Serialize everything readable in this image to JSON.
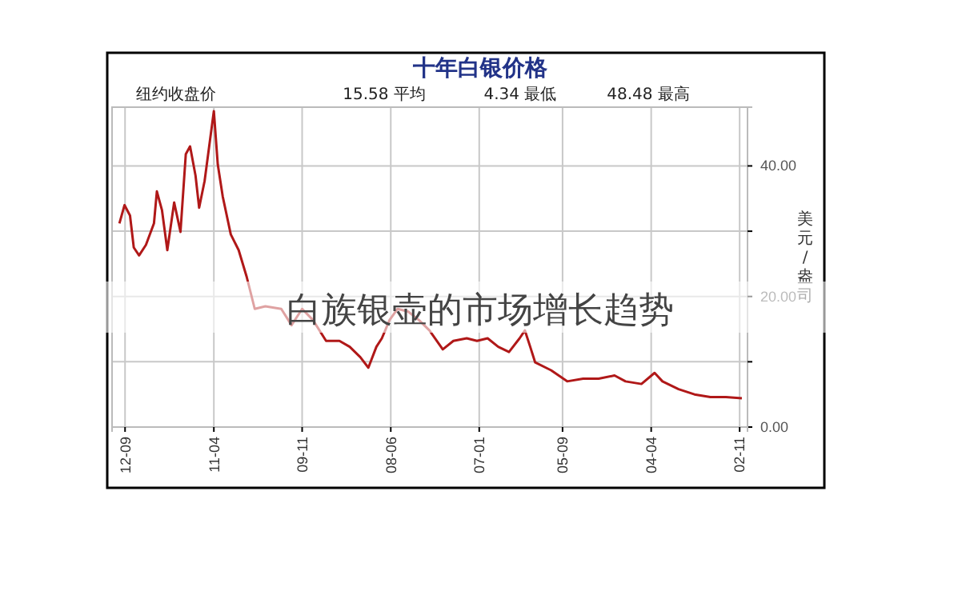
{
  "chart_data": {
    "type": "line",
    "title": "十年白银价格",
    "ylabel": "美元/盎司",
    "annotations": [
      "纽约收盘价",
      "15.58 平均",
      "4.34 最低",
      "48.48 最高",
      "白族银壶的市场增长趋势"
    ],
    "xlim": [
      "2012-11-16",
      "2002-09-16"
    ],
    "xticks": [
      {
        "value": "2012-09",
        "label": "12-09"
      },
      {
        "value": "2011-04",
        "label": "11-04"
      },
      {
        "value": "2009-11",
        "label": "09-11"
      },
      {
        "value": "2008-06",
        "label": "08-06"
      },
      {
        "value": "2007-01",
        "label": "07-01"
      },
      {
        "value": "2005-09",
        "label": "05-09"
      },
      {
        "value": "2004-04",
        "label": "04-04"
      },
      {
        "value": "2002-11",
        "label": "02-11"
      }
    ],
    "ylim": [
      0,
      49
    ],
    "yticks": [
      {
        "value": 0,
        "label": "0.00"
      },
      {
        "value": 10,
        "label": null
      },
      {
        "value": 20,
        "label": "20.00"
      },
      {
        "value": 30,
        "label": null
      },
      {
        "value": 40,
        "label": "40.00"
      }
    ],
    "grid": true,
    "series": [
      {
        "color": "#b01818",
        "x": [
          "2012-10-04",
          "2012-09-04",
          "2012-08-03",
          "2012-07-12",
          "2012-06-11",
          "2012-05-02",
          "2012-03-16",
          "2012-02-28",
          "2012-01-29",
          "2011-12-29",
          "2011-11-19",
          "2011-10-13",
          "2011-09-12",
          "2011-08-18",
          "2011-07-17",
          "2011-06-26",
          "2011-05-25",
          "2011-04-01",
          "2011-03-09",
          "2011-02-08",
          "2010-12-23",
          "2010-11-07",
          "2010-09-21",
          "2010-08-05",
          "2010-06-04",
          "2010-03-03",
          "2010-01-02",
          "2009-11-01",
          "2009-08-30",
          "2009-06-14",
          "2009-03-28",
          "2009-01-27",
          "2008-11-26",
          "2008-10-10",
          "2008-08-24",
          "2008-07-23",
          "2008-06-08",
          "2008-04-22",
          "2008-02-21",
          "2007-12-20",
          "2007-10-19",
          "2007-08-02",
          "2007-06-01",
          "2007-03-15",
          "2007-01-14",
          "2006-11-13",
          "2006-09-12",
          "2006-07-11",
          "2006-05-10",
          "2006-04-09",
          "2006-03-09",
          "2006-02-08",
          "2005-11-07",
          "2005-08-05",
          "2005-05-04",
          "2005-02-02",
          "2004-11-01",
          "2004-08-29",
          "2004-05-28",
          "2004-03-12",
          "2004-01-26",
          "2003-10-24",
          "2003-07-23",
          "2003-04-21",
          "2003-01-20",
          "2002-10-19"
        ],
        "values": [
          31.2,
          34.0,
          32.4,
          27.5,
          26.3,
          27.9,
          31.2,
          36.1,
          33.2,
          27.1,
          34.4,
          29.9,
          41.8,
          43.0,
          38.5,
          33.6,
          37.7,
          48.4,
          40.2,
          35.3,
          29.5,
          27.1,
          23.0,
          18.1,
          18.5,
          18.1,
          15.6,
          18.1,
          16.4,
          13.2,
          13.2,
          12.3,
          10.7,
          9.1,
          12.3,
          13.6,
          16.4,
          18.1,
          17.7,
          16.4,
          14.8,
          11.9,
          13.2,
          13.6,
          13.2,
          13.6,
          12.3,
          11.5,
          13.6,
          14.8,
          12.3,
          9.9,
          8.7,
          7.0,
          7.4,
          7.4,
          7.9,
          7.0,
          6.6,
          8.3,
          7.0,
          5.8,
          5.0,
          4.6,
          4.6,
          4.4
        ]
      }
    ]
  }
}
